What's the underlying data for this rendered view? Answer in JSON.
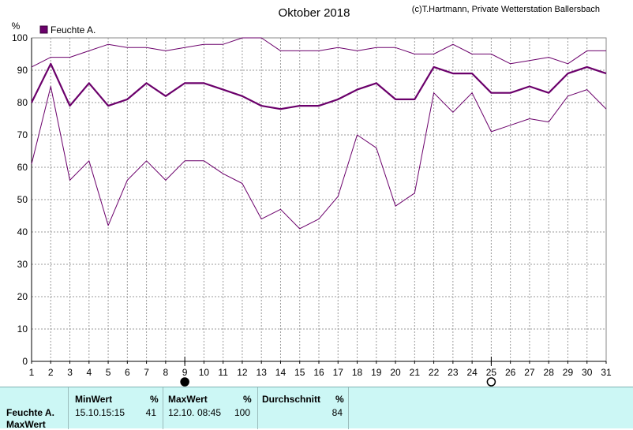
{
  "title": "Oktober 2018",
  "credit": "(c)T.Hartmann, Private Wetterstation Ballersbach",
  "colors": {
    "series": "#6b006b",
    "grid": "#9a9a9a",
    "panel": "#ccf7f5"
  },
  "chart_data": {
    "type": "line",
    "title": "Oktober 2018",
    "ylabel": "%",
    "xlabel": "",
    "ylim": [
      0,
      100
    ],
    "xlim": [
      1,
      31
    ],
    "y_ticks": [
      0,
      10,
      20,
      30,
      40,
      50,
      60,
      70,
      80,
      90,
      100
    ],
    "x": [
      1,
      2,
      3,
      4,
      5,
      6,
      7,
      8,
      9,
      10,
      11,
      12,
      13,
      14,
      15,
      16,
      17,
      18,
      19,
      20,
      21,
      22,
      23,
      24,
      25,
      26,
      27,
      28,
      29,
      30,
      31
    ],
    "grid": true,
    "legend": {
      "placement": "top-left",
      "entries": [
        "Feuchte A."
      ]
    },
    "moon_markers": [
      {
        "day": 9,
        "phase": "new-moon"
      },
      {
        "day": 25,
        "phase": "full-moon"
      }
    ],
    "series": [
      {
        "name": "Feuchte A.",
        "role": "mean",
        "values": [
          80,
          92,
          79,
          86,
          79,
          81,
          86,
          82,
          86,
          86,
          84,
          82,
          79,
          78,
          79,
          79,
          81,
          84,
          86,
          81,
          81,
          91,
          89,
          89,
          83,
          83,
          85,
          83,
          89,
          91,
          89
        ]
      },
      {
        "role": "max",
        "values": [
          91,
          94,
          94,
          96,
          98,
          97,
          97,
          96,
          97,
          98,
          98,
          100,
          100,
          96,
          96,
          96,
          97,
          96,
          97,
          97,
          95,
          95,
          98,
          95,
          95,
          92,
          93,
          94,
          92,
          96,
          96
        ]
      },
      {
        "role": "min",
        "values": [
          61,
          85,
          56,
          62,
          42,
          56,
          62,
          56,
          62,
          62,
          58,
          55,
          44,
          47,
          41,
          44,
          51,
          70,
          66,
          48,
          52,
          83,
          77,
          83,
          71,
          73,
          75,
          74,
          82,
          84,
          78
        ]
      }
    ]
  },
  "stats": {
    "row1_label": "Feuchte A.",
    "row2_label": "MaxWert",
    "min_header": "MinWert",
    "min_unit": "%",
    "min_date": "15.10.",
    "min_time": "15:15",
    "min_value": "41",
    "max_header": "MaxWert",
    "max_unit": "%",
    "max_date": "12.10.",
    "max_time": "08:45",
    "max_value": "100",
    "avg_header": "Durchschnitt",
    "avg_unit": "%",
    "avg_value": "84"
  }
}
